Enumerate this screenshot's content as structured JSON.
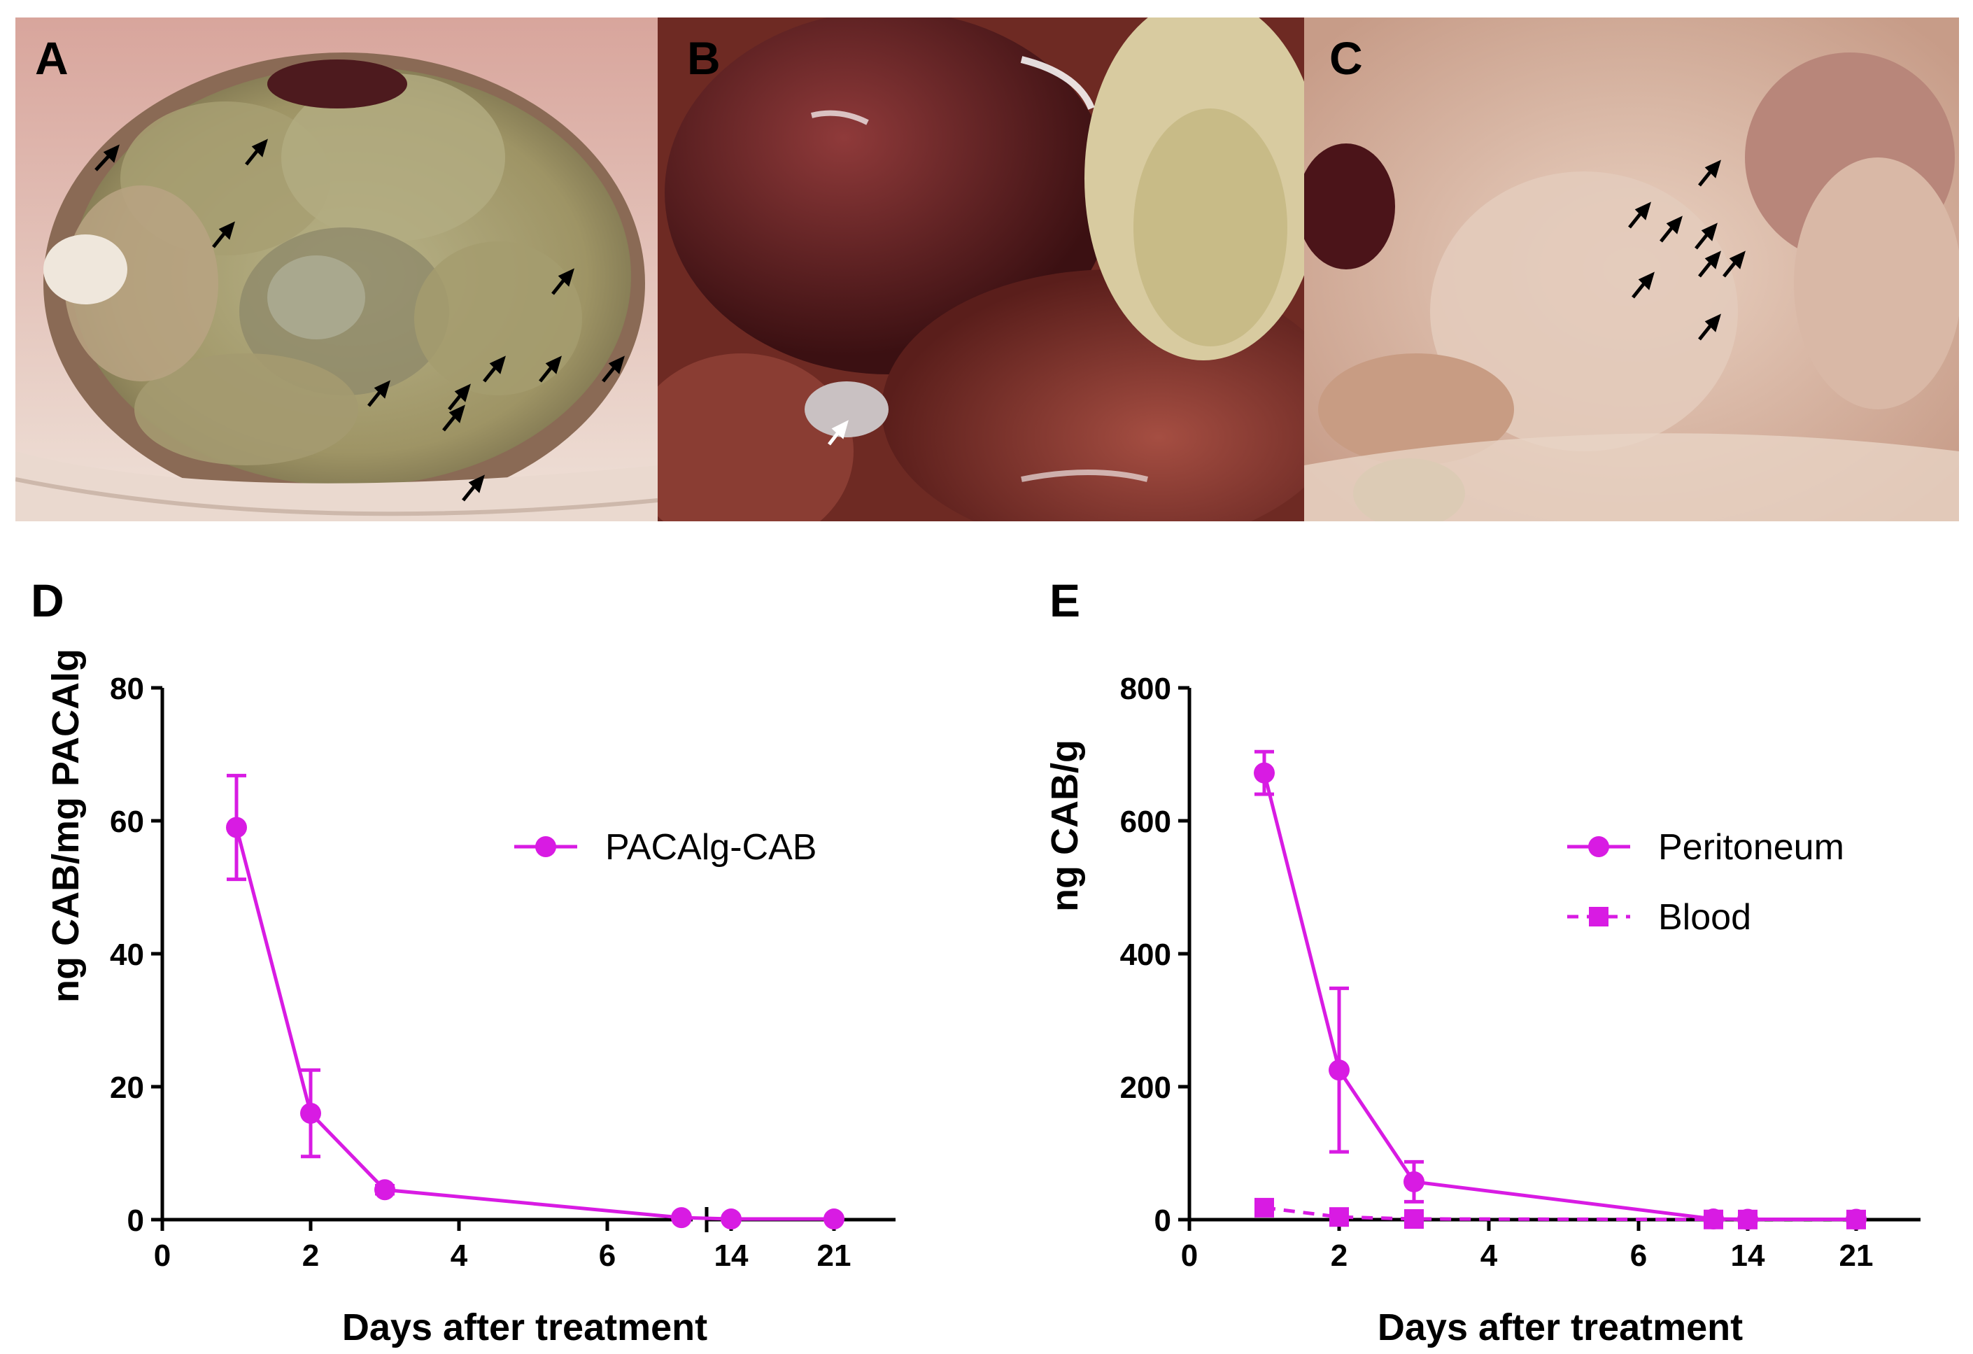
{
  "panels": {
    "a": "A",
    "b": "B",
    "c": "C",
    "d": "D",
    "e": "E"
  },
  "chart_data": [
    {
      "type": "line",
      "panel": "D",
      "xlabel": "Days after treatment",
      "ylabel": "ng CAB/mg PACAlg",
      "x_ticks": [
        "0",
        "2",
        "4",
        "6",
        "14",
        "21"
      ],
      "y_ticks": [
        "0",
        "20",
        "40",
        "60",
        "80"
      ],
      "ylim": [
        0,
        80
      ],
      "x_axis_break": true,
      "legend_position": "top-right",
      "series": [
        {
          "name": "PACAlg-CAB",
          "marker": "circle",
          "line": "solid",
          "color": "#d81be3",
          "x": [
            1,
            2,
            3,
            7,
            14,
            21
          ],
          "y": [
            59,
            16,
            4.5,
            0.3,
            0.1,
            0.1
          ],
          "err": [
            7.8,
            6.5,
            0.6,
            0.3,
            0.1,
            0.1
          ]
        }
      ]
    },
    {
      "type": "line",
      "panel": "E",
      "xlabel": "Days after treatment",
      "ylabel": "ng CAB/g",
      "x_ticks": [
        "0",
        "2",
        "4",
        "6",
        "14",
        "21"
      ],
      "y_ticks": [
        "0",
        "200",
        "400",
        "600",
        "800"
      ],
      "ylim": [
        0,
        800
      ],
      "x_axis_break": false,
      "legend_position": "top-right",
      "series": [
        {
          "name": "Peritoneum",
          "marker": "circle",
          "line": "solid",
          "color": "#d81be3",
          "x": [
            1,
            2,
            3,
            7,
            14,
            21
          ],
          "y": [
            672,
            225,
            57,
            1,
            0.5,
            0.5
          ],
          "err": [
            32,
            123,
            30,
            2,
            1,
            1
          ]
        },
        {
          "name": "Blood",
          "marker": "square",
          "line": "dashed",
          "color": "#d81be3",
          "x": [
            1,
            2,
            3,
            7,
            14,
            21
          ],
          "y": [
            18,
            4,
            1,
            0.3,
            0.2,
            0.2
          ],
          "err": [
            3,
            1,
            0.5,
            0.2,
            0.1,
            0.1
          ]
        }
      ]
    }
  ]
}
